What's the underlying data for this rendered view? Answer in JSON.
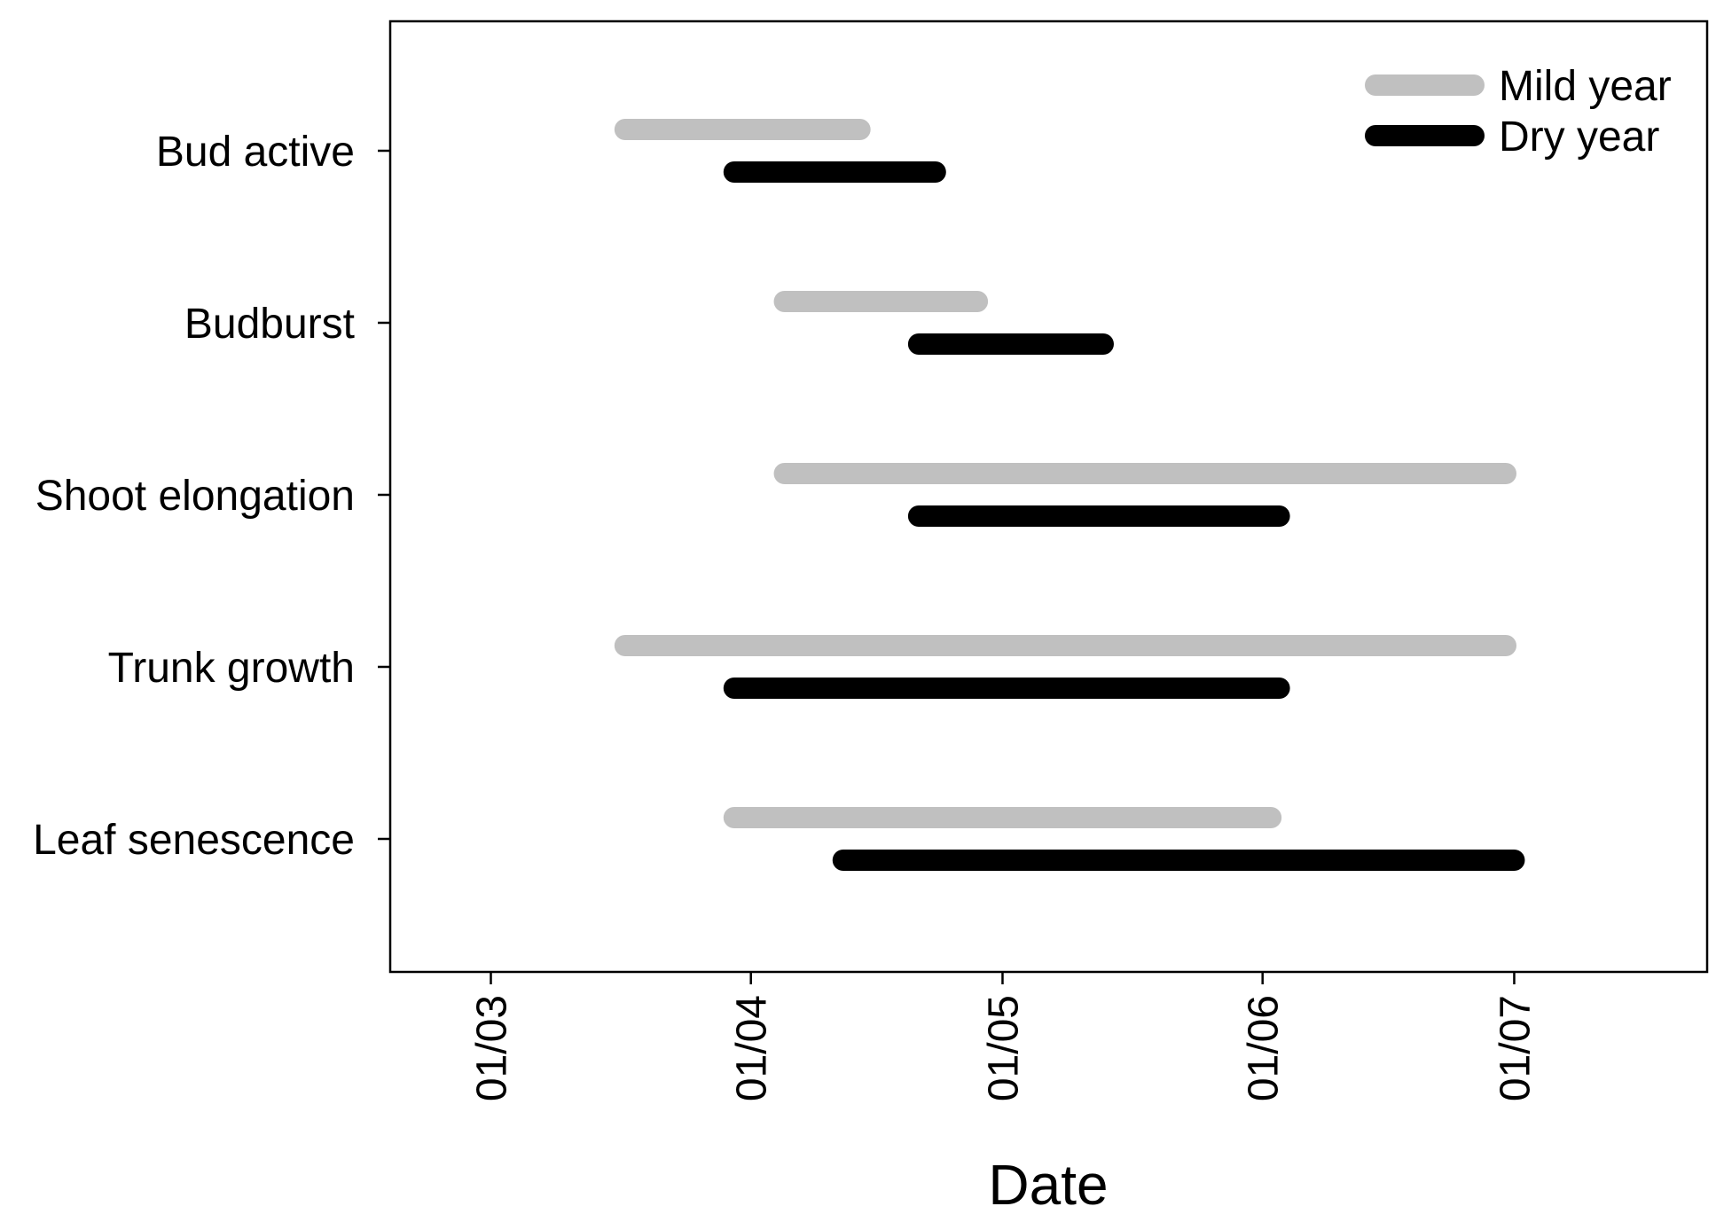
{
  "chart_data": {
    "type": "gantt",
    "title": "",
    "xlabel": "Date",
    "ylabel": "",
    "x_scale": "date",
    "xlim": [
      "2000-02-18",
      "2000-07-24"
    ],
    "x_ticks": [
      {
        "value": "2000-03-01",
        "label": "01/03"
      },
      {
        "value": "2000-04-01",
        "label": "01/04"
      },
      {
        "value": "2000-05-01",
        "label": "01/05"
      },
      {
        "value": "2000-06-01",
        "label": "01/06"
      },
      {
        "value": "2000-07-01",
        "label": "01/07"
      }
    ],
    "x_tick_label_rotation": "vertical",
    "categories": [
      "Bud active",
      "Budburst",
      "Shoot elongation",
      "Trunk growth",
      "Leaf senescence"
    ],
    "series": [
      {
        "name": "Mild year",
        "color": "#c0c0c0",
        "intervals": [
          [
            "2000-03-17",
            "2000-04-14"
          ],
          [
            "2000-04-05",
            "2000-04-28"
          ],
          [
            "2000-04-05",
            "2000-06-30"
          ],
          [
            "2000-03-17",
            "2000-06-30"
          ],
          [
            "2000-03-30",
            "2000-06-02"
          ]
        ]
      },
      {
        "name": "Dry year",
        "color": "#000000",
        "intervals": [
          [
            "2000-03-30",
            "2000-04-23"
          ],
          [
            "2000-04-21",
            "2000-05-13"
          ],
          [
            "2000-04-21",
            "2000-06-03"
          ],
          [
            "2000-03-30",
            "2000-06-03"
          ],
          [
            "2000-04-12",
            "2000-07-01"
          ]
        ]
      }
    ],
    "grid": false,
    "legend": {
      "position": "top-right",
      "entries": [
        "Mild year",
        "Dry year"
      ]
    }
  }
}
